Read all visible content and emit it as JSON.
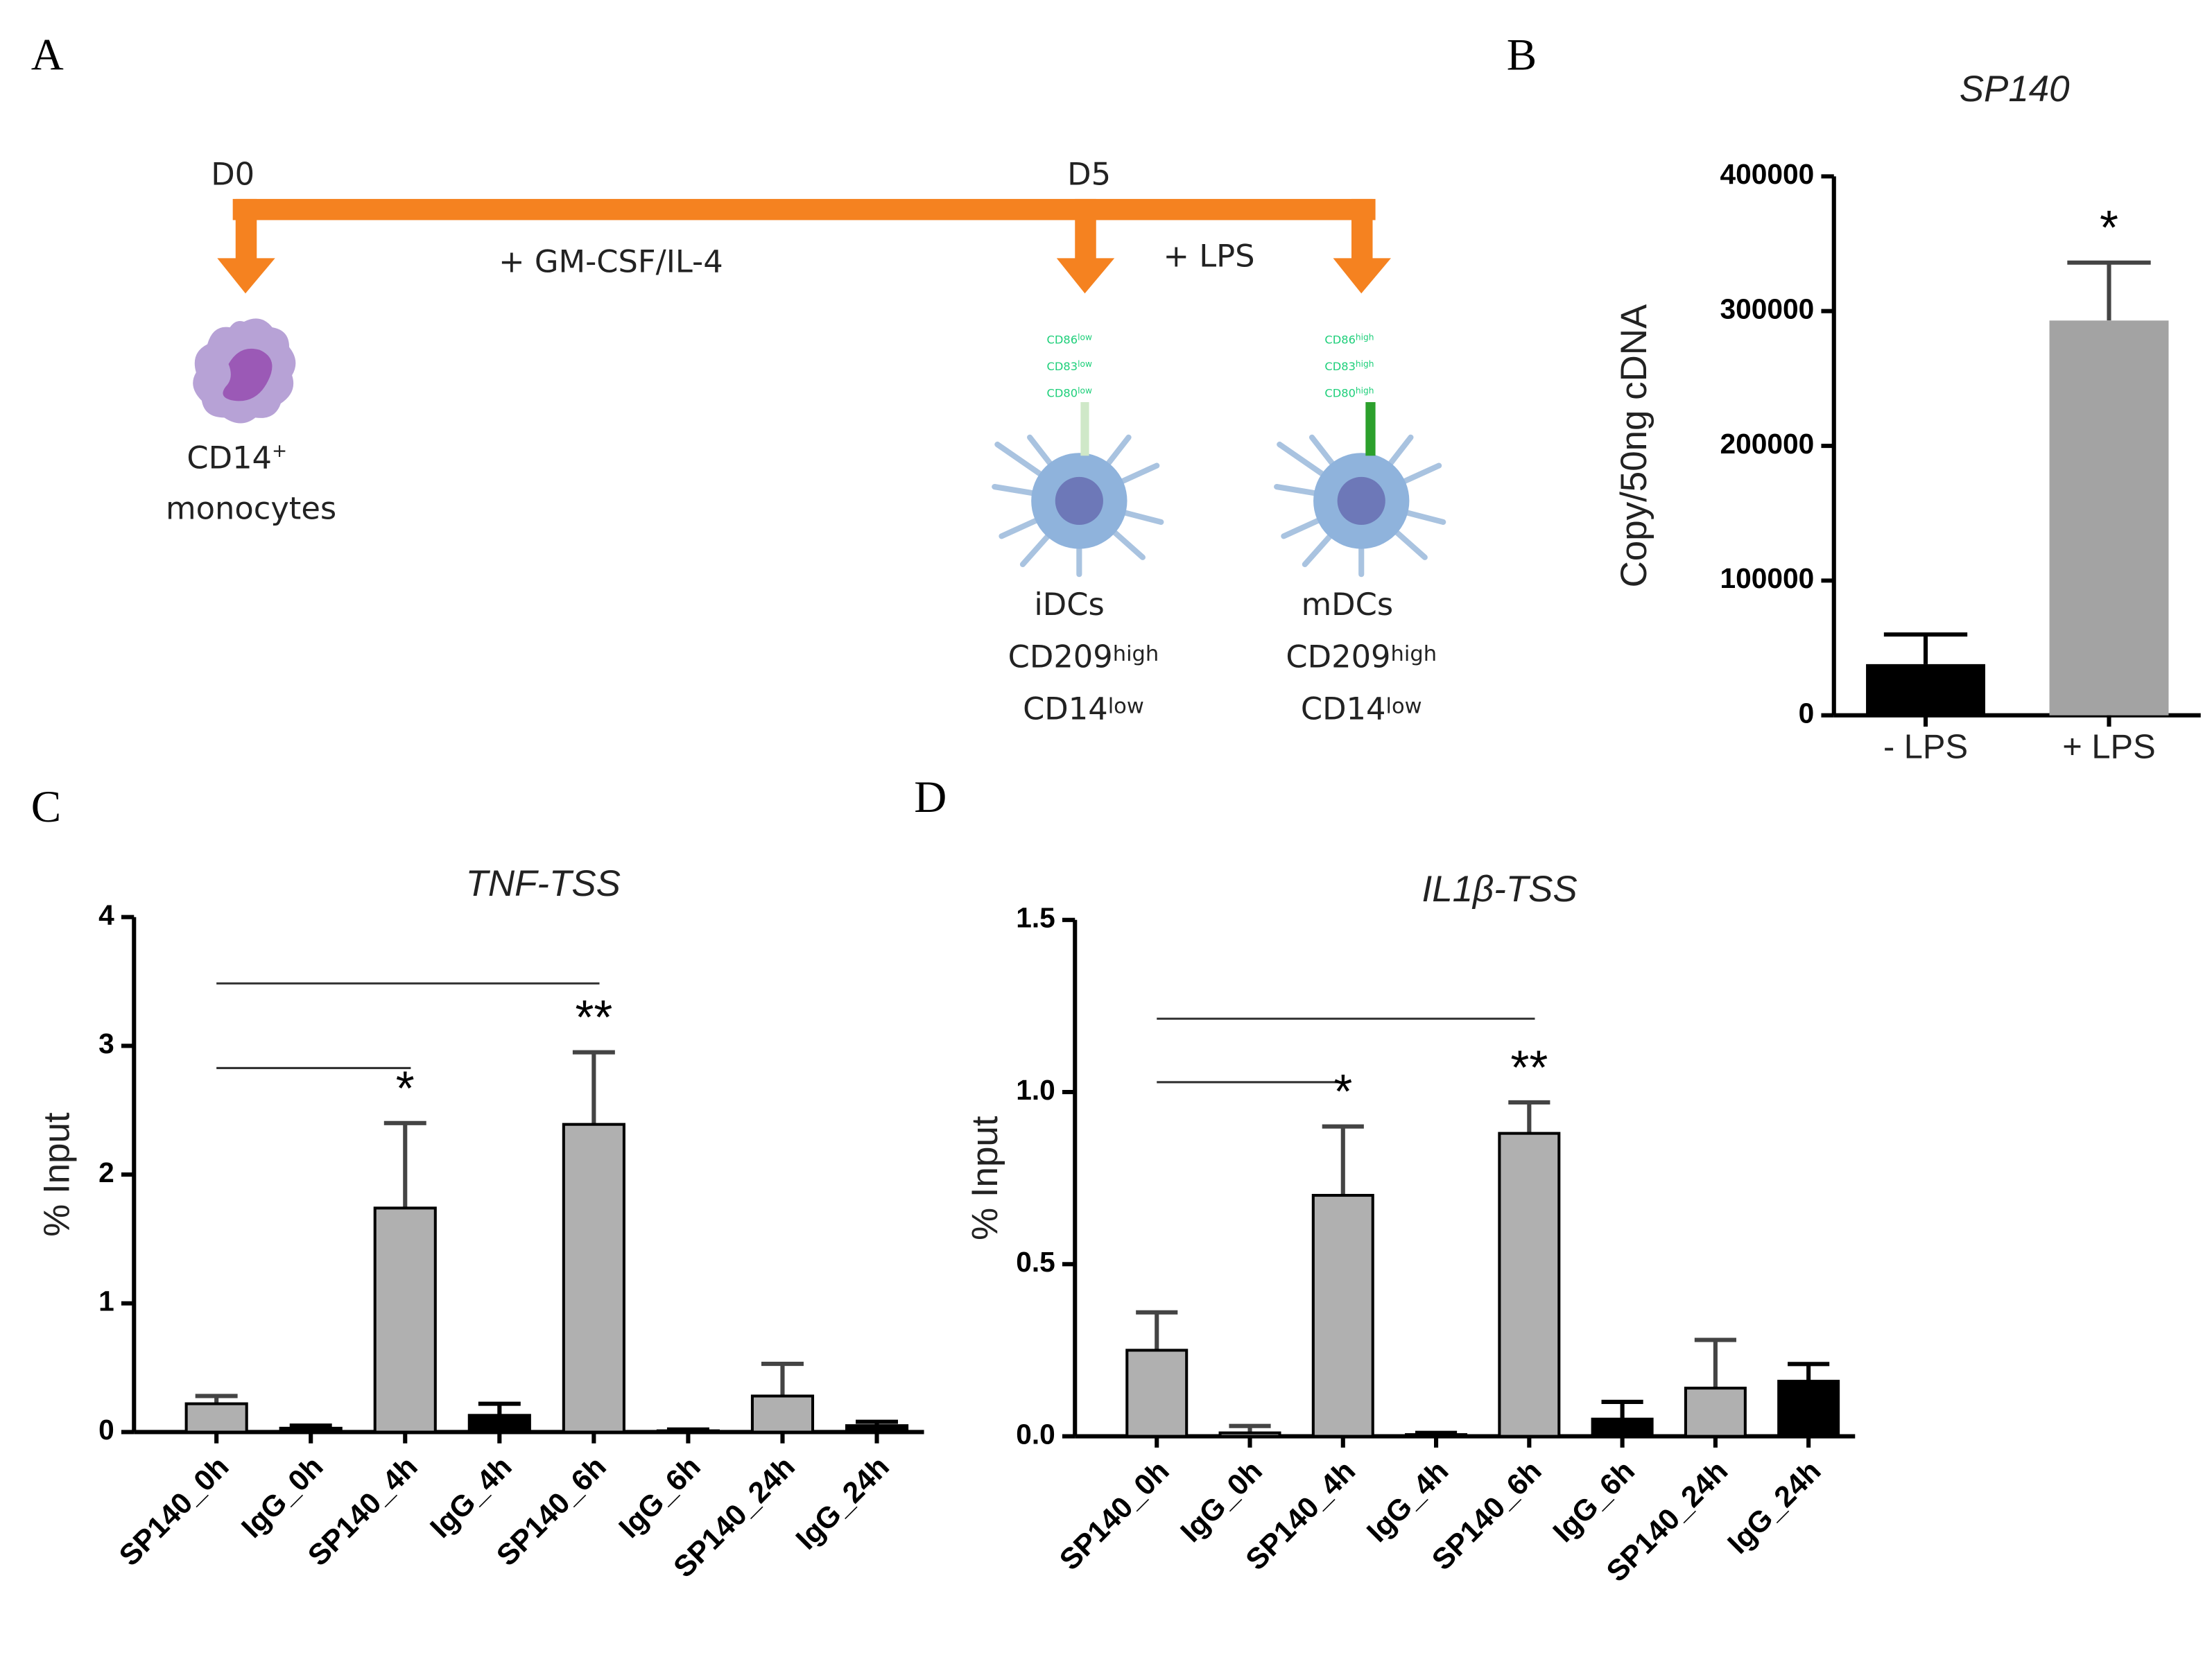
{
  "panel_labels": [
    "A",
    "B",
    "C",
    "D"
  ],
  "diagram": {
    "timepoints": [
      "D0",
      "D5"
    ],
    "treatments": [
      "+ GM-CSF/IL-4",
      "+ LPS"
    ],
    "monocyte": {
      "name": "CD14",
      "sup": "+",
      "label": "monocytes"
    },
    "cells": [
      {
        "name": "iDCs",
        "markers": [
          "CD86",
          "CD83",
          "CD80"
        ],
        "marker_level": "low",
        "lines": [
          [
            "CD209",
            "high"
          ],
          [
            "CD14",
            "low"
          ]
        ]
      },
      {
        "name": "mDCs",
        "markers": [
          "CD86",
          "CD83",
          "CD80"
        ],
        "marker_level": "high",
        "lines": [
          [
            "CD209",
            "high"
          ],
          [
            "CD14",
            "low"
          ]
        ]
      }
    ]
  },
  "chart_data": [
    {
      "type": "bar",
      "title": "SP140",
      "ylabel": "Copy/50ng cDNA",
      "categories": [
        "- LPS",
        "+ LPS"
      ],
      "values": [
        38000,
        293000
      ],
      "errors": [
        22000,
        43000
      ],
      "colors": [
        "#000000",
        "#a3a3a3"
      ],
      "ylim": [
        0,
        400000
      ],
      "yticks": [
        0,
        100000,
        200000,
        300000,
        400000
      ],
      "annotations": [
        "*"
      ]
    },
    {
      "type": "bar",
      "title": "TNF-TSS",
      "ylabel": "% Input",
      "categories": [
        "SP140_0h",
        "IgG_0h",
        "SP140_4h",
        "IgG_4h",
        "SP140_6h",
        "IgG_6h",
        "SP140_24h",
        "IgG_24h"
      ],
      "values": [
        0.22,
        0.03,
        1.74,
        0.13,
        2.39,
        0.01,
        0.28,
        0.05
      ],
      "errors": [
        0.06,
        0.02,
        0.66,
        0.09,
        0.56,
        0.01,
        0.25,
        0.03
      ],
      "colors": [
        "#b0b0b0",
        "#000000",
        "#b0b0b0",
        "#000000",
        "#b0b0b0",
        "#000000",
        "#b0b0b0",
        "#000000"
      ],
      "ylim": [
        0,
        4
      ],
      "yticks": [
        0,
        1,
        2,
        3,
        4
      ],
      "annotations": [
        "*",
        "**"
      ]
    },
    {
      "type": "bar",
      "title": "IL1β-TSS",
      "ylabel": "% Input",
      "categories": [
        "SP140_0h",
        "IgG_0h",
        "SP140_4h",
        "IgG_4h",
        "SP140_6h",
        "IgG_6h",
        "SP140_24h",
        "IgG_24h"
      ],
      "values": [
        0.25,
        0.01,
        0.7,
        0.005,
        0.88,
        0.05,
        0.14,
        0.16
      ],
      "errors": [
        0.11,
        0.02,
        0.2,
        0.005,
        0.09,
        0.05,
        0.14,
        0.05
      ],
      "colors": [
        "#b0b0b0",
        "#b0b0b0",
        "#b0b0b0",
        "#000000",
        "#b0b0b0",
        "#000000",
        "#b0b0b0",
        "#000000"
      ],
      "ylim": [
        0,
        1.5
      ],
      "yticks": [
        {
          "value": 0,
          "label": "0.0"
        },
        0.5,
        {
          "value": 1,
          "label": "1.0"
        },
        1.5
      ],
      "annotations": [
        "*",
        "**"
      ]
    }
  ]
}
